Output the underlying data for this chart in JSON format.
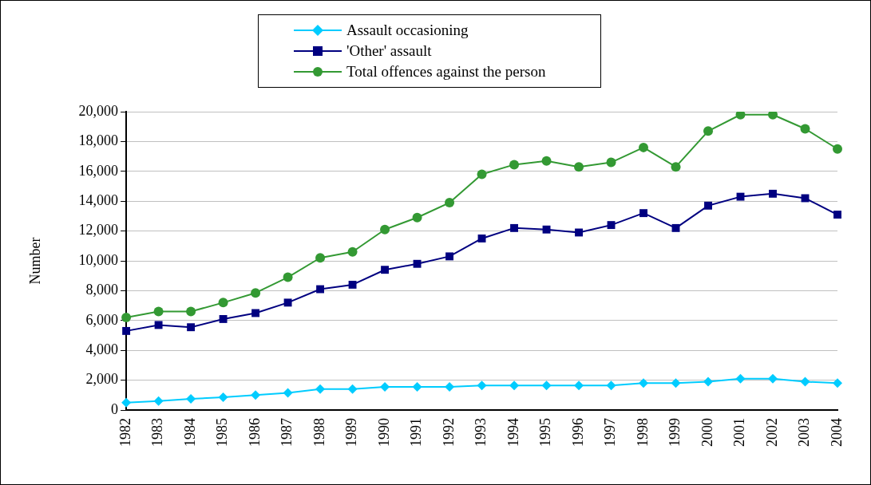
{
  "chart_data": {
    "type": "line",
    "ylabel": "Number",
    "categories": [
      "1982",
      "1983",
      "1984",
      "1985",
      "1986",
      "1987",
      "1988",
      "1989",
      "1990",
      "1991",
      "1992",
      "1993",
      "1994",
      "1995",
      "1996",
      "1997",
      "1998",
      "1999",
      "2000",
      "2001",
      "2002",
      "2003",
      "2004"
    ],
    "series": [
      {
        "name": "Assault occasioning",
        "color": "#00ccff",
        "marker": "diamond",
        "values": [
          500,
          600,
          750,
          850,
          1000,
          1150,
          1400,
          1400,
          1550,
          1550,
          1550,
          1650,
          1650,
          1650,
          1650,
          1650,
          1800,
          1800,
          1900,
          2100,
          2100,
          1900,
          1800
        ]
      },
      {
        "name": "'Other' assault",
        "color": "#000080",
        "marker": "square",
        "values": [
          5300,
          5700,
          5550,
          6100,
          6500,
          7200,
          8100,
          8400,
          9400,
          9800,
          10300,
          11500,
          12200,
          12100,
          11900,
          12400,
          13200,
          12200,
          13700,
          14300,
          14500,
          14200,
          13100
        ]
      },
      {
        "name": "Total offences against the person",
        "color": "#339933",
        "marker": "circle",
        "values": [
          6200,
          6600,
          6600,
          7200,
          7850,
          8900,
          10200,
          10600,
          12100,
          12900,
          13900,
          15800,
          16450,
          16700,
          16300,
          16600,
          17600,
          16300,
          18700,
          19800,
          19800,
          18850,
          17500
        ]
      }
    ],
    "ylim": [
      0,
      20000
    ],
    "yticks": [
      0,
      {
        "value": 2000,
        "label": "2,000"
      },
      {
        "value": 4000,
        "label": "4,000"
      },
      {
        "value": 6000,
        "label": "6,000"
      },
      {
        "value": 8000,
        "label": "8,000"
      },
      {
        "value": 10000,
        "label": "10,000"
      },
      {
        "value": 12000,
        "label": "12,000"
      },
      {
        "value": 14000,
        "label": "14,000"
      },
      {
        "value": 16000,
        "label": "16,000"
      },
      {
        "value": 18000,
        "label": "18,000"
      },
      {
        "value": 20000,
        "label": "20,000"
      }
    ],
    "grid": "y",
    "legend": "top",
    "line_style": "solid"
  }
}
